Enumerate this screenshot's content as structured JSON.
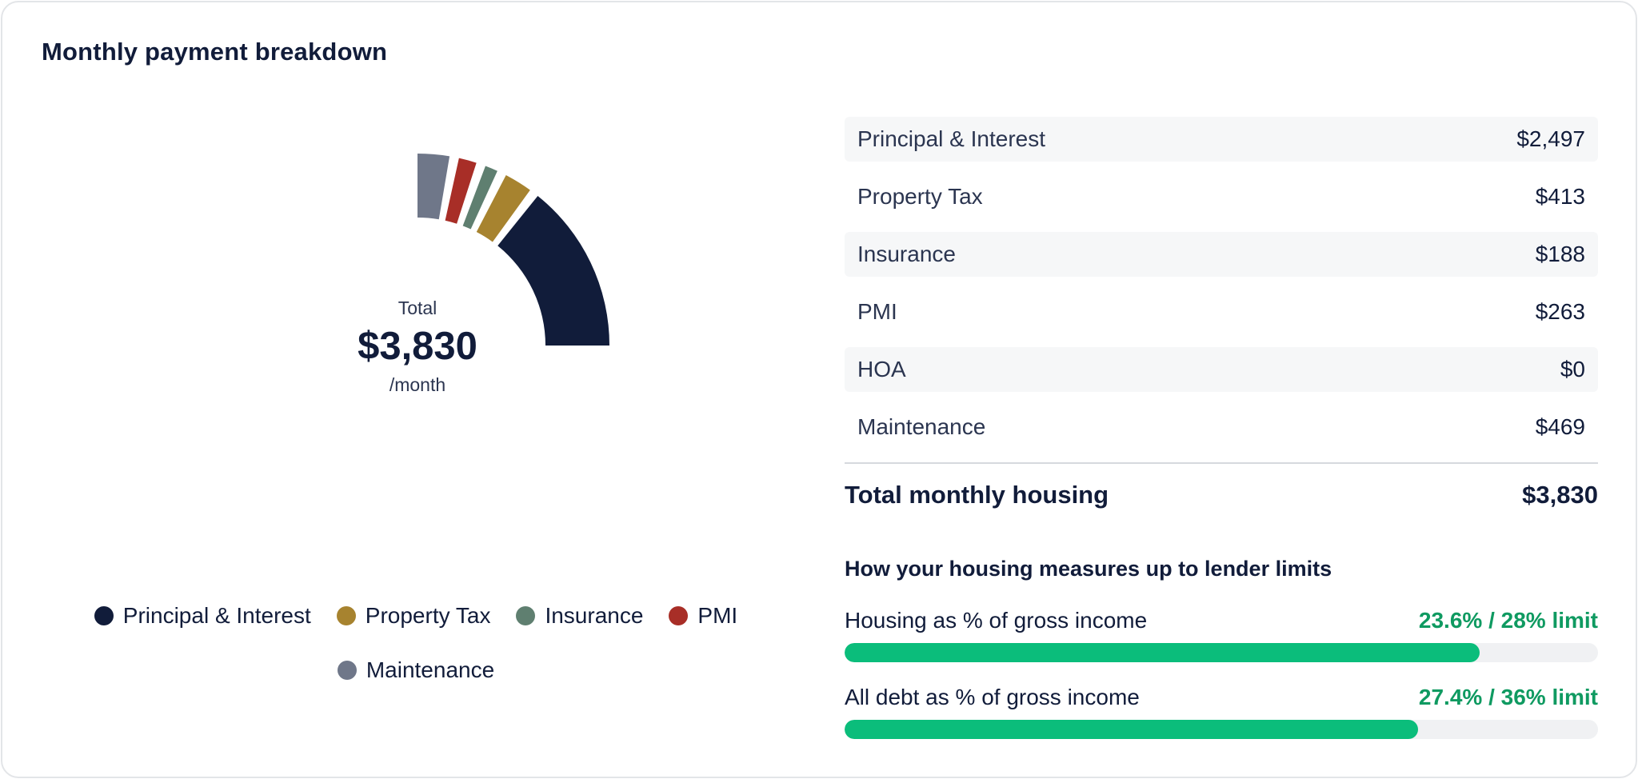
{
  "card": {
    "title": "Monthly payment breakdown"
  },
  "chart_data": {
    "type": "pie",
    "variant": "partial-donut",
    "center": {
      "label": "Total",
      "value": "$3,830",
      "sub": "/month"
    },
    "categories": [
      "Principal & Interest",
      "Property Tax",
      "Insurance",
      "PMI",
      "HOA",
      "Maintenance"
    ],
    "values": [
      2497,
      413,
      188,
      263,
      0,
      469
    ],
    "colors": [
      "#111c3a",
      "#a7832f",
      "#5f7f70",
      "#a82e27",
      "#9aa0a8",
      "#6f7789"
    ],
    "legend_placement": "bottom"
  },
  "legend": [
    {
      "label": "Principal & Interest",
      "color": "#111c3a"
    },
    {
      "label": "Property Tax",
      "color": "#a7832f"
    },
    {
      "label": "Insurance",
      "color": "#5f7f70"
    },
    {
      "label": "PMI",
      "color": "#a82e27"
    },
    {
      "label": "Maintenance",
      "color": "#6f7789"
    }
  ],
  "breakdown": {
    "rows": [
      {
        "label": "Principal & Interest",
        "value": "$2,497"
      },
      {
        "label": "Property Tax",
        "value": "$413"
      },
      {
        "label": "Insurance",
        "value": "$188"
      },
      {
        "label": "PMI",
        "value": "$263"
      },
      {
        "label": "HOA",
        "value": "$0"
      },
      {
        "label": "Maintenance",
        "value": "$469"
      }
    ],
    "total_label": "Total monthly housing",
    "total_value": "$3,830"
  },
  "limits": {
    "title": "How your housing measures up to lender limits",
    "metrics": [
      {
        "name": "Housing as % of gross income",
        "value": "23.6% / 28% limit",
        "fill": 0.843
      },
      {
        "name": "All debt as % of gross income",
        "value": "27.4% / 36% limit",
        "fill": 0.761
      }
    ]
  },
  "colors": {
    "accent_green": "#0bbd7b",
    "accent_green_text": "#0f9a61",
    "navy": "#111c3a"
  }
}
